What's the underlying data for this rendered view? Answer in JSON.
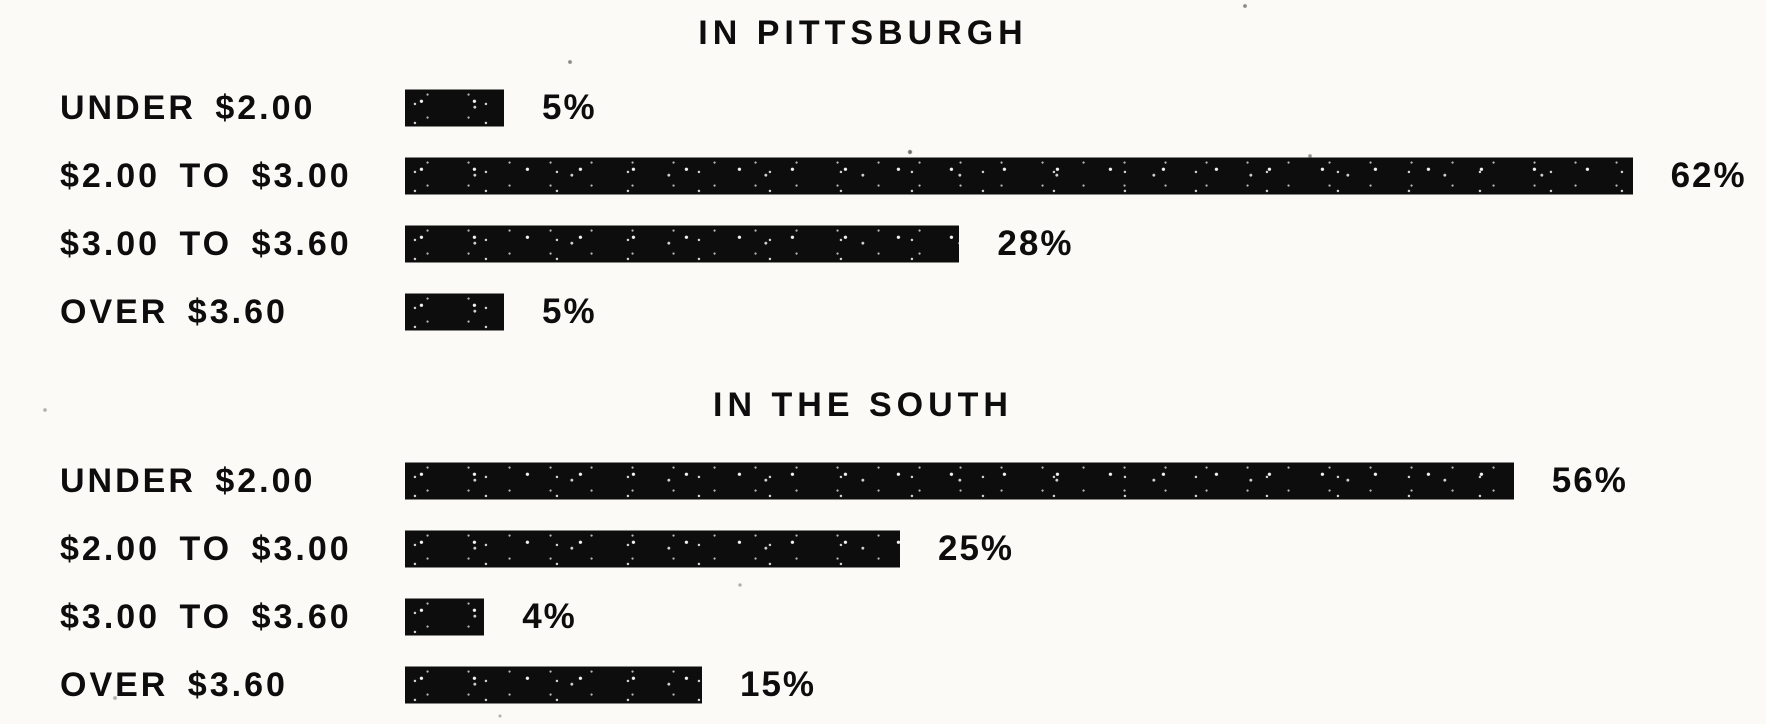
{
  "page": {
    "paper_color": "#fbfaf7",
    "ink_color": "#0d0d0d"
  },
  "chart_data": [
    {
      "type": "bar",
      "orientation": "horizontal",
      "title": "IN PITTSBURGH",
      "categories": [
        "UNDER $2.00",
        "$2.00 TO $3.00",
        "$3.00 TO $3.60",
        "OVER $3.60"
      ],
      "values": [
        5,
        62,
        28,
        5
      ],
      "value_labels": [
        "5%",
        "62%",
        "28%",
        "5%"
      ],
      "unit": "%",
      "xlim": [
        0,
        65
      ],
      "bar_color": "#0d0d0d",
      "grid": false,
      "legend": false,
      "value_label_position": "right-of-bar"
    },
    {
      "type": "bar",
      "orientation": "horizontal",
      "title": "IN THE SOUTH",
      "categories": [
        "UNDER $2.00",
        "$2.00 TO $3.00",
        "$3.00 TO $3.60",
        "OVER $3.60"
      ],
      "values": [
        56,
        25,
        4,
        15
      ],
      "value_labels": [
        "56%",
        "25%",
        "4%",
        "15%"
      ],
      "unit": "%",
      "xlim": [
        0,
        65
      ],
      "bar_color": "#0d0d0d",
      "grid": false,
      "legend": false,
      "value_label_position": "right-of-bar"
    }
  ]
}
